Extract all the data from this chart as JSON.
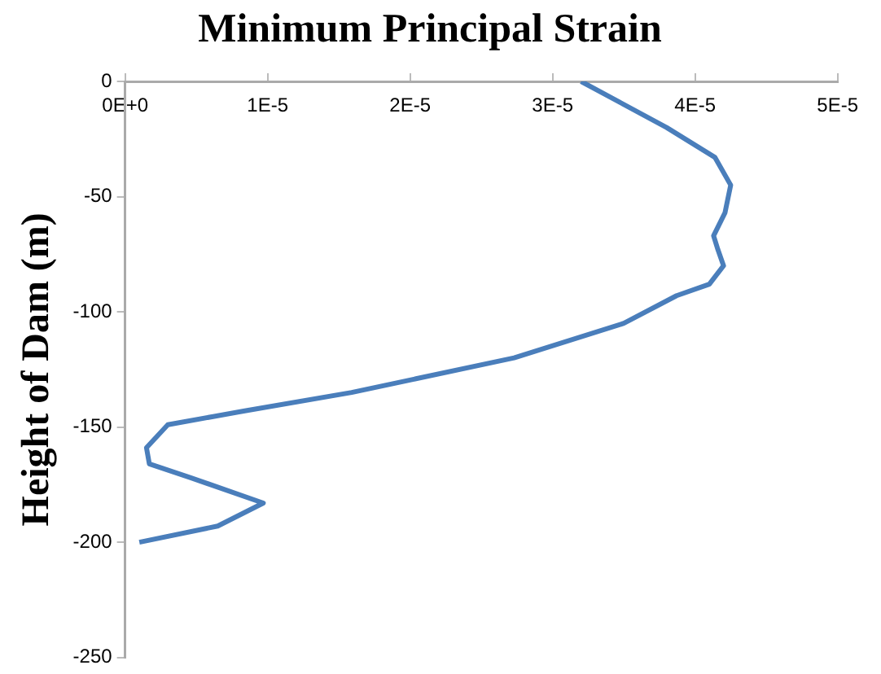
{
  "chart_data": {
    "type": "line",
    "title": "Minimum Principal Strain",
    "ylabel": "Height of Dam (m)",
    "x": [
      3.2e-05,
      3.8e-05,
      4.14e-05,
      4.25e-05,
      4.21e-05,
      4.13e-05,
      4.16e-05,
      4.2e-05,
      4.1e-05,
      3.87e-05,
      3.5e-05,
      2.73e-05,
      1.59e-05,
      8.4e-06,
      3e-06,
      1.5e-06,
      1.7e-06,
      4.6e-06,
      9.7e-06,
      6.5e-06,
      1e-06
    ],
    "series": [
      {
        "color": "#4a7ebb",
        "values": [
          0,
          -20,
          -33,
          -45,
          -57,
          -67,
          -73,
          -80,
          -88,
          -93,
          -105,
          -120,
          -135,
          -143,
          -149,
          -159,
          -166,
          -172,
          -183,
          -193,
          -200
        ]
      }
    ],
    "xlim": [
      0,
      5e-05
    ],
    "xticks": [
      {
        "value": 0,
        "label": "0E+0"
      },
      {
        "value": 1e-05,
        "label": "1E-5"
      },
      {
        "value": 2e-05,
        "label": "2E-5"
      },
      {
        "value": 3e-05,
        "label": "3E-5"
      },
      {
        "value": 4e-05,
        "label": "4E-5"
      },
      {
        "value": 5e-05,
        "label": "5E-5"
      }
    ],
    "ylim": [
      -250,
      0
    ],
    "yticks": [
      -250,
      -200,
      -150,
      -100,
      -50,
      0
    ],
    "grid": false,
    "legend": false,
    "marker": "none",
    "line_style": "solid"
  }
}
